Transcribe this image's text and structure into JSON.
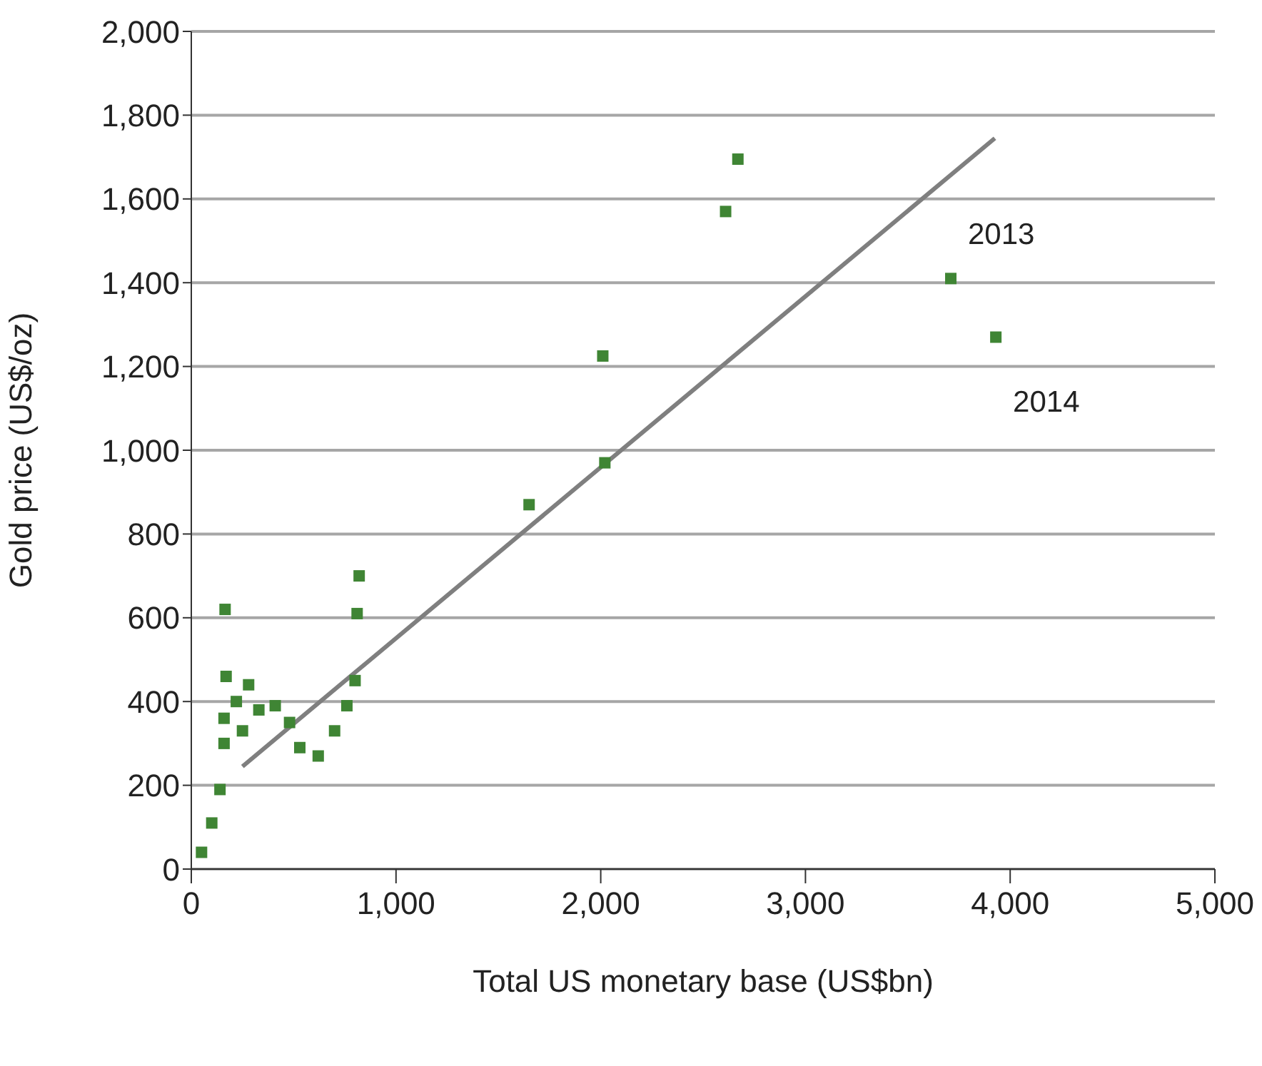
{
  "chart_data": {
    "type": "scatter",
    "xlabel": "Total US monetary base (US$bn)",
    "ylabel": "Gold price (US$/oz)",
    "xlim": [
      0,
      5000
    ],
    "xticks": [
      0,
      {
        "value": 1000,
        "label": "1,000"
      },
      {
        "value": 2000,
        "label": "2,000"
      },
      {
        "value": 3000,
        "label": "3,000"
      },
      {
        "value": 4000,
        "label": "4,000"
      },
      {
        "value": 5000,
        "label": "5,000"
      }
    ],
    "ylim": [
      0,
      2000
    ],
    "yticks": [
      0,
      200,
      400,
      600,
      800,
      {
        "value": 1000,
        "label": "1,000"
      },
      {
        "value": 1200,
        "label": "1,200"
      },
      {
        "value": 1400,
        "label": "1,400"
      },
      {
        "value": 1600,
        "label": "1,600"
      },
      {
        "value": 1800,
        "label": "1,800"
      },
      {
        "value": 2000,
        "label": "2,000"
      }
    ],
    "grid": "y",
    "marker": "square",
    "series": [
      {
        "color": "#3f8534",
        "x": [
          50,
          100,
          140,
          160,
          160,
          170,
          165,
          220,
          250,
          280,
          330,
          410,
          480,
          530,
          620,
          700,
          760,
          800,
          810,
          820,
          1650,
          2010,
          2020,
          2610,
          2670,
          3710,
          3930
        ],
        "values": [
          40,
          110,
          190,
          300,
          360,
          460,
          620,
          400,
          330,
          440,
          380,
          390,
          350,
          290,
          270,
          330,
          390,
          450,
          610,
          700,
          870,
          1225,
          970,
          1570,
          1695,
          1410,
          1270
        ]
      },
      {
        "type": "line",
        "marker": "none",
        "color": "#7f7f7f",
        "x": [
          250,
          3925
        ],
        "values": [
          245,
          1745
        ]
      }
    ],
    "annotations": [
      {
        "text": "2013",
        "x": 3710,
        "y": 1410
      },
      {
        "text": "2014",
        "x": 3930,
        "y": 1270
      }
    ]
  }
}
